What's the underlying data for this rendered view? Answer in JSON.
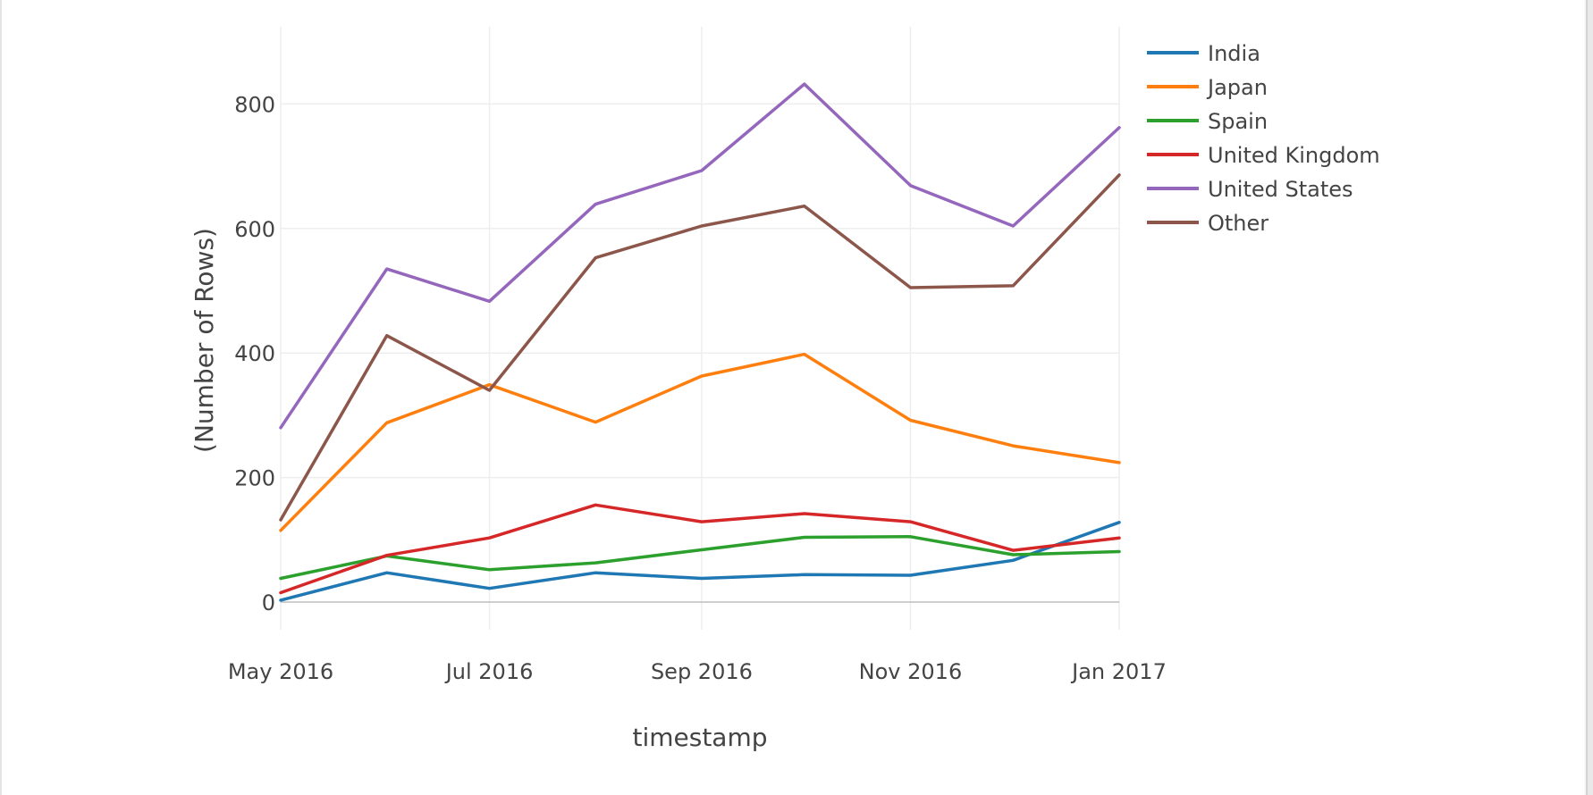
{
  "chart_data": {
    "type": "line",
    "title": "",
    "xlabel": "timestamp",
    "ylabel": "(Number of Rows)",
    "x": [
      "2016-05-01",
      "2016-06-01",
      "2016-07-01",
      "2016-08-01",
      "2016-09-01",
      "2016-10-01",
      "2016-11-01",
      "2016-12-01",
      "2017-01-01"
    ],
    "xticks": [
      "May 2016",
      "Jul 2016",
      "Sep 2016",
      "Nov 2016",
      "Jan 2017"
    ],
    "xtick_values": [
      "2016-05-01",
      "2016-07-01",
      "2016-09-01",
      "2016-11-01",
      "2017-01-01"
    ],
    "yticks": [
      0,
      200,
      400,
      600,
      800
    ],
    "ylim": [
      -90,
      930
    ],
    "grid": true,
    "legend": "top-right",
    "series": [
      {
        "name": "India",
        "color": "#1f77b4",
        "values": [
          3,
          47,
          22,
          47,
          38,
          44,
          43,
          67,
          128
        ]
      },
      {
        "name": "Japan",
        "color": "#ff7f0e",
        "values": [
          115,
          288,
          349,
          289,
          363,
          398,
          292,
          251,
          224
        ]
      },
      {
        "name": "Spain",
        "color": "#2ca02c",
        "values": [
          38,
          74,
          52,
          63,
          84,
          104,
          105,
          76,
          81
        ]
      },
      {
        "name": "United Kingdom",
        "color": "#d62728",
        "values": [
          15,
          75,
          103,
          156,
          129,
          142,
          129,
          83,
          103
        ]
      },
      {
        "name": "United States",
        "color": "#9467bd",
        "values": [
          280,
          535,
          483,
          639,
          693,
          832,
          669,
          604,
          762
        ]
      },
      {
        "name": "Other",
        "color": "#8c564b",
        "values": [
          132,
          428,
          340,
          553,
          604,
          636,
          505,
          508,
          686
        ]
      }
    ]
  }
}
